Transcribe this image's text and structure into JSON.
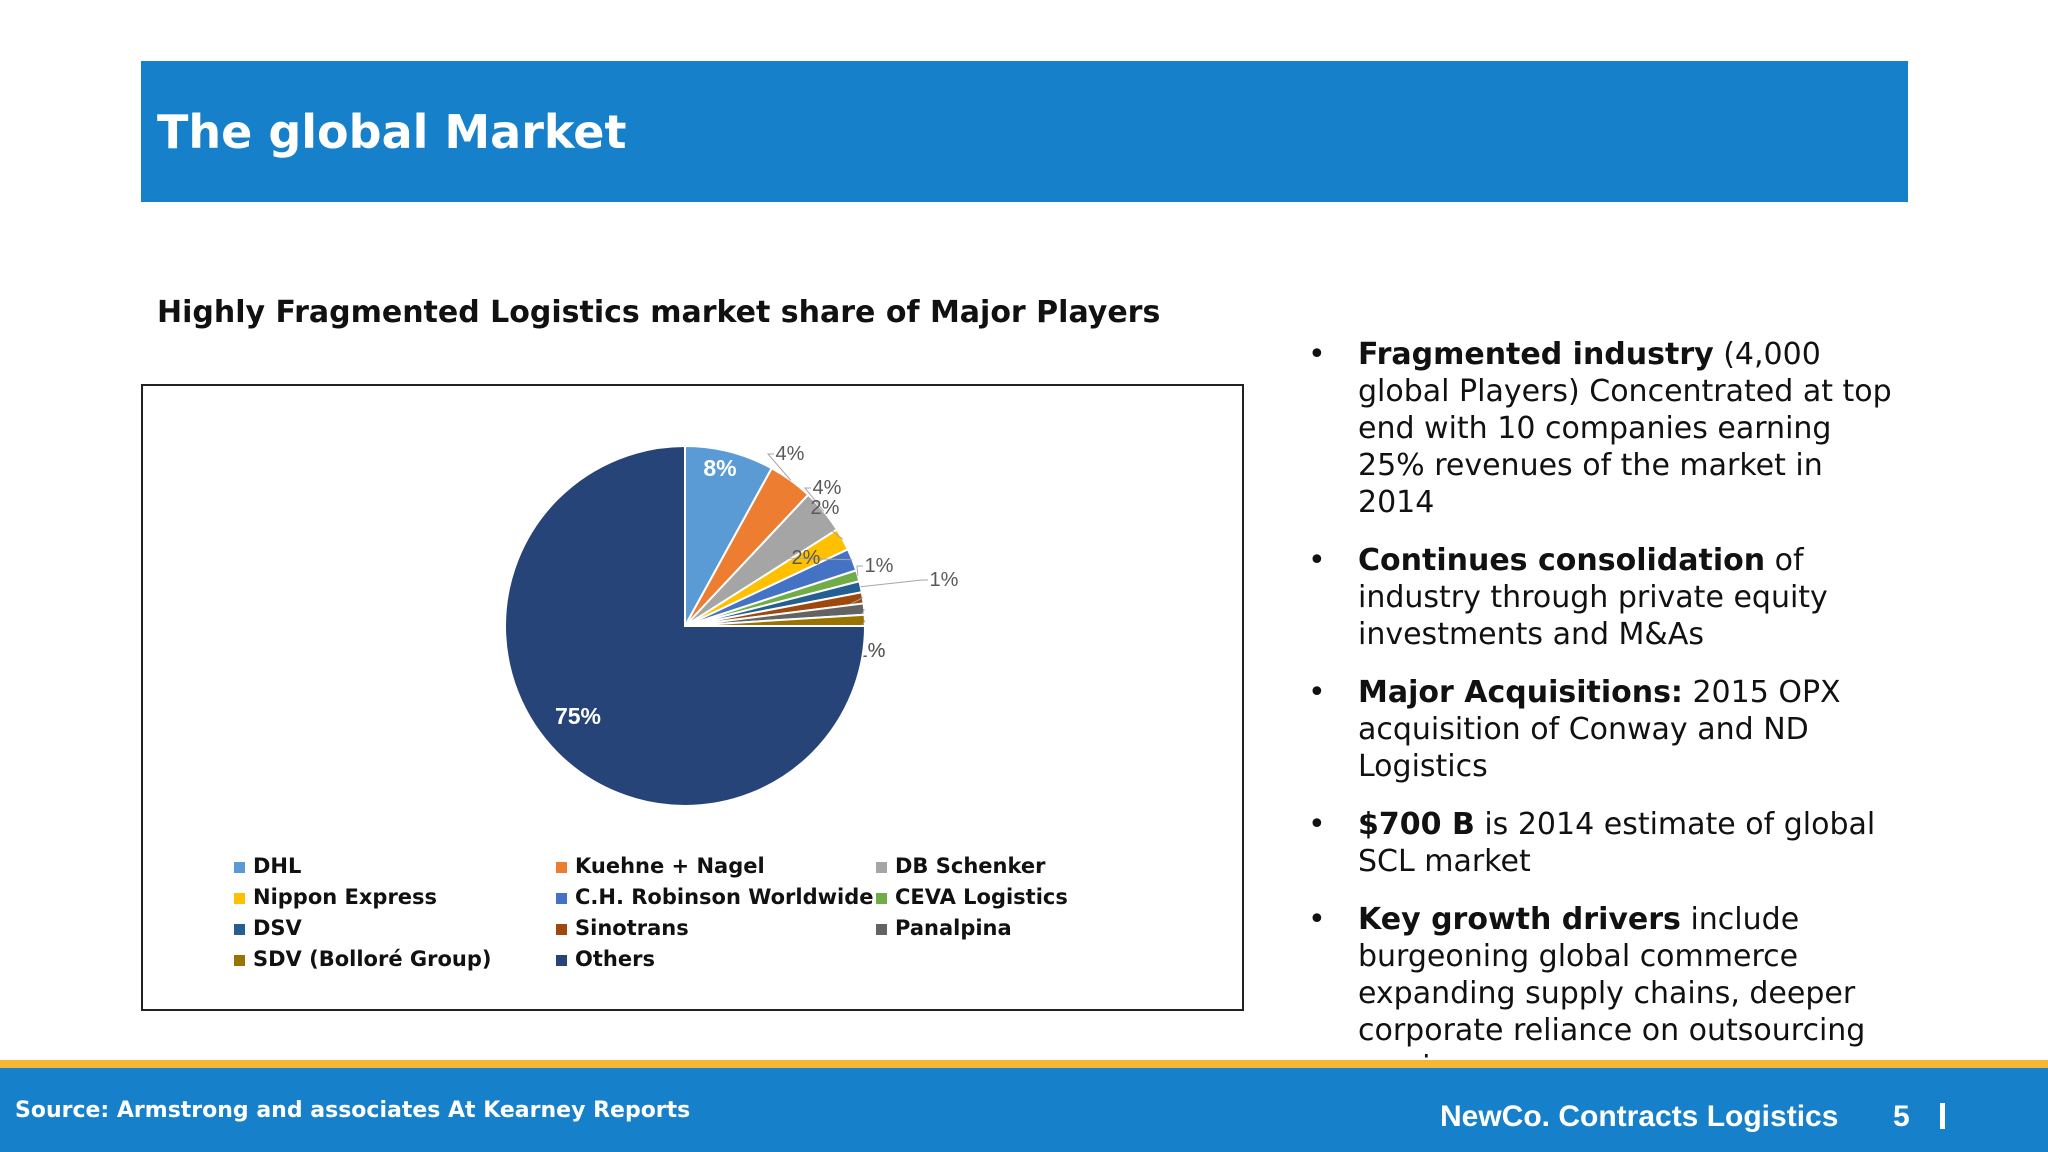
{
  "header": {
    "title": "The global Market"
  },
  "chart_heading": "Highly Fragmented Logistics market share of Major Players",
  "chart_data": {
    "type": "pie",
    "title": "Highly Fragmented Logistics market share of Major Players",
    "unit": "%",
    "legend_position": "bottom",
    "slices": [
      {
        "name": "DHL",
        "value": 8,
        "label": "8%",
        "color": "#5b9bd5"
      },
      {
        "name": "Kuehne + Nagel",
        "value": 4,
        "label": "4%",
        "color": "#ed7d31"
      },
      {
        "name": "DB Schenker",
        "value": 4,
        "label": "4%",
        "color": "#a5a5a5"
      },
      {
        "name": "Nippon Express",
        "value": 2,
        "label": "2%",
        "color": "#ffc000"
      },
      {
        "name": "C.H. Robinson Worldwide",
        "value": 2,
        "label": "2%",
        "color": "#4472c4"
      },
      {
        "name": "CEVA Logistics",
        "value": 1,
        "label": "1%",
        "color": "#70ad47"
      },
      {
        "name": "DSV",
        "value": 1,
        "label": "1%",
        "color": "#255e91"
      },
      {
        "name": "Sinotrans",
        "value": 1,
        "label": "1%",
        "color": "#9e480e"
      },
      {
        "name": "Panalpina",
        "value": 1,
        "label": "1%",
        "color": "#636363"
      },
      {
        "name": "SDV (Bolloré Group)",
        "value": 1,
        "label": "1%",
        "color": "#997300"
      },
      {
        "name": "Others",
        "value": 75,
        "label": "75%",
        "color": "#264478"
      }
    ]
  },
  "bullets": [
    {
      "bold": "Fragmented industry",
      "text": " (4,000 global Players) Concentrated at top end with 10 companies earning 25% revenues of the market in 2014"
    },
    {
      "bold": "Continues consolidation",
      "text": " of industry through private equity investments and M&As"
    },
    {
      "bold": "Major Acquisitions:",
      "text": " 2015 OPX acquisition of Conway and ND Logistics"
    },
    {
      "bold": "$700 B",
      "text": " is 2014 estimate of global SCL market"
    },
    {
      "bold": "Key growth drivers",
      "text": " include burgeoning global commerce expanding supply chains, deeper corporate reliance on outsourcing services"
    }
  ],
  "footer": {
    "source": "Source: Armstrong and associates At Kearney Reports",
    "company": "NewCo. Contracts Logistics",
    "page_number": "5",
    "stripe_color": "#f6b733",
    "bar_color": "#1681ca"
  }
}
